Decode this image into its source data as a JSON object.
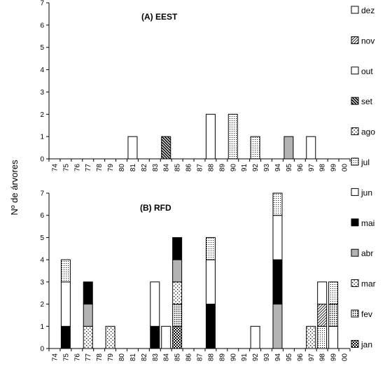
{
  "chart_data": {
    "type": "bar",
    "stacked": true,
    "ylabel": "Nº de árvores",
    "years": [
      "74",
      "75",
      "76",
      "77",
      "78",
      "79",
      "80",
      "81",
      "82",
      "83",
      "84",
      "85",
      "86",
      "87",
      "88",
      "89",
      "90",
      "91",
      "92",
      "93",
      "94",
      "95",
      "96",
      "97",
      "98",
      "99",
      "00"
    ],
    "months": [
      "jan",
      "fev",
      "mar",
      "abr",
      "mai",
      "jun",
      "jul",
      "ago",
      "set",
      "out",
      "nov",
      "dez"
    ],
    "legend": {
      "placement": "right",
      "order": [
        "dez",
        "nov",
        "out",
        "set",
        "ago",
        "jul",
        "jun",
        "mai",
        "abr",
        "mar",
        "fev",
        "jan"
      ]
    },
    "styles": {
      "jan": {
        "fill": "checker",
        "color": "#000000"
      },
      "fev": {
        "fill": "dots-dense",
        "color": "#000000"
      },
      "mar": {
        "fill": "dots-sparse",
        "color": "#000000"
      },
      "abr": {
        "fill": "solid",
        "color": "#b3b3b3"
      },
      "mai": {
        "fill": "solid",
        "color": "#000000"
      },
      "jun": {
        "fill": "solid",
        "color": "#ffffff"
      },
      "jul": {
        "fill": "dots-fine",
        "color": "#000000"
      },
      "ago": {
        "fill": "dots-sparse",
        "color": "#000000"
      },
      "set": {
        "fill": "diagonal-bold",
        "color": "#000000"
      },
      "out": {
        "fill": "solid",
        "color": "#ffffff"
      },
      "nov": {
        "fill": "diagonal",
        "color": "#000000"
      },
      "dez": {
        "fill": "solid",
        "color": "#ffffff"
      }
    },
    "panels": [
      {
        "title": "(A) EEST",
        "ylim": [
          0,
          7
        ],
        "yticks": [
          0,
          1,
          2,
          3,
          4,
          5,
          6,
          7
        ],
        "stacks": [
          {
            "year": "81",
            "segments": [
              {
                "month": "jun",
                "value": 1
              }
            ]
          },
          {
            "year": "84",
            "segments": [
              {
                "month": "set",
                "value": 1
              }
            ]
          },
          {
            "year": "88",
            "segments": [
              {
                "month": "jun",
                "value": 2
              }
            ]
          },
          {
            "year": "90",
            "segments": [
              {
                "month": "jul",
                "value": 2
              }
            ]
          },
          {
            "year": "92",
            "segments": [
              {
                "month": "jul",
                "value": 1
              }
            ]
          },
          {
            "year": "95",
            "segments": [
              {
                "month": "abr",
                "value": 1
              }
            ]
          },
          {
            "year": "97",
            "segments": [
              {
                "month": "jun",
                "value": 1
              }
            ]
          }
        ]
      },
      {
        "title": "(B) RFD",
        "ylim": [
          0,
          7
        ],
        "yticks": [
          0,
          1,
          2,
          3,
          4,
          5,
          6,
          7
        ],
        "stacks": [
          {
            "year": "75",
            "segments": [
              {
                "month": "mai",
                "value": 1
              },
              {
                "month": "jun",
                "value": 2
              },
              {
                "month": "jul",
                "value": 1
              }
            ]
          },
          {
            "year": "77",
            "segments": [
              {
                "month": "mar",
                "value": 1
              },
              {
                "month": "abr",
                "value": 1
              },
              {
                "month": "mai",
                "value": 1
              }
            ]
          },
          {
            "year": "79",
            "segments": [
              {
                "month": "mar",
                "value": 1
              }
            ]
          },
          {
            "year": "83",
            "segments": [
              {
                "month": "mai",
                "value": 1
              },
              {
                "month": "jun",
                "value": 2
              }
            ]
          },
          {
            "year": "84",
            "segments": [
              {
                "month": "jun",
                "value": 1
              }
            ]
          },
          {
            "year": "85",
            "segments": [
              {
                "month": "jan",
                "value": 1
              },
              {
                "month": "fev",
                "value": 1
              },
              {
                "month": "mar",
                "value": 1
              },
              {
                "month": "abr",
                "value": 1
              },
              {
                "month": "mai",
                "value": 1
              }
            ]
          },
          {
            "year": "88",
            "segments": [
              {
                "month": "mai",
                "value": 2
              },
              {
                "month": "jun",
                "value": 2
              },
              {
                "month": "jul",
                "value": 1
              }
            ]
          },
          {
            "year": "92",
            "segments": [
              {
                "month": "jun",
                "value": 1
              }
            ]
          },
          {
            "year": "94",
            "segments": [
              {
                "month": "abr",
                "value": 2
              },
              {
                "month": "mai",
                "value": 2
              },
              {
                "month": "jun",
                "value": 2
              },
              {
                "month": "jul",
                "value": 1
              }
            ]
          },
          {
            "year": "97",
            "segments": [
              {
                "month": "mar",
                "value": 1
              }
            ]
          },
          {
            "year": "98",
            "segments": [
              {
                "month": "jul",
                "value": 1
              },
              {
                "month": "nov",
                "value": 1
              },
              {
                "month": "jun",
                "value": 1
              }
            ]
          },
          {
            "year": "99",
            "segments": [
              {
                "month": "jun",
                "value": 1
              },
              {
                "month": "fev",
                "value": 1
              },
              {
                "month": "jul",
                "value": 1
              }
            ]
          }
        ]
      }
    ]
  }
}
